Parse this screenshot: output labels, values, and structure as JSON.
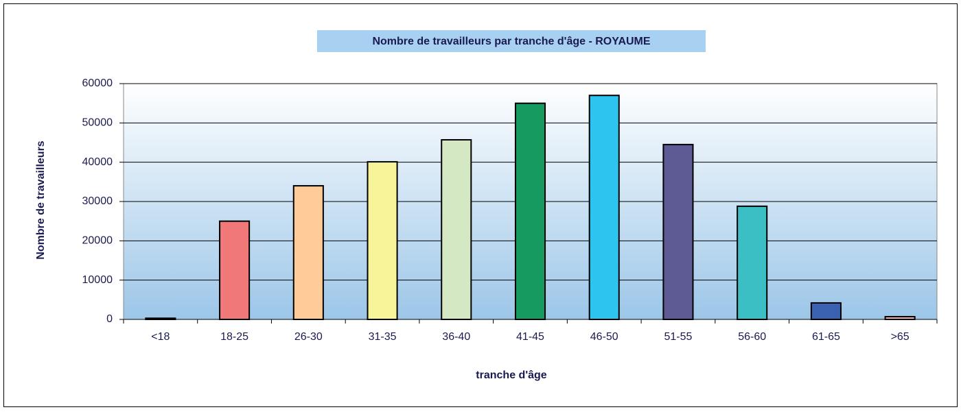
{
  "chart_data": {
    "type": "bar",
    "title": "Nombre de travailleurs par tranche d'âge - ROYAUME",
    "xlabel": "tranche d'âge",
    "ylabel": "Nombre de travailleurs",
    "categories": [
      "<18",
      "18-25",
      "26-30",
      "31-35",
      "36-40",
      "41-45",
      "46-50",
      "51-55",
      "56-60",
      "61-65",
      ">65"
    ],
    "values": [
      300,
      25000,
      34000,
      40100,
      45700,
      55000,
      57000,
      44500,
      28800,
      4200,
      700
    ],
    "colors": [
      "#7f7f9f",
      "#f07878",
      "#ffcc99",
      "#f8f49a",
      "#d4e8c4",
      "#169a60",
      "#2ec4f0",
      "#5e5b94",
      "#3bbfc4",
      "#3a62b0",
      "#f0b0b0"
    ],
    "ylim": [
      0,
      60000
    ],
    "yticks": [
      0,
      10000,
      20000,
      30000,
      40000,
      50000,
      60000
    ],
    "grid": true
  }
}
